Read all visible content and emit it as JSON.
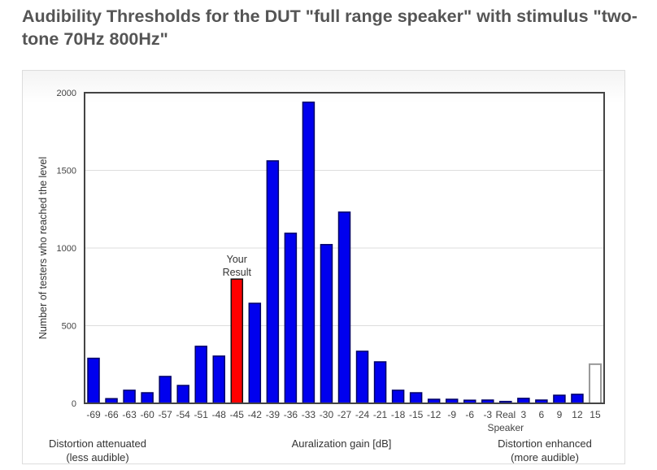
{
  "title": "Audibility Thresholds for the DUT \"full range speaker\" with stimulus \"two-tone 70Hz 800Hz\"",
  "chart_data": {
    "type": "bar",
    "title": "Audibility Thresholds for the DUT \"full range speaker\" with stimulus \"two-tone 70Hz 800Hz\"",
    "xlabel": "Auralization gain [dB]",
    "ylabel": "Number of testers who reached the level",
    "ylim": [
      0,
      2000
    ],
    "yticks": [
      0,
      500,
      1000,
      1500,
      2000
    ],
    "grid": true,
    "categories": [
      "-69",
      "-66",
      "-63",
      "-60",
      "-57",
      "-54",
      "-51",
      "-48",
      "-45",
      "-42",
      "-39",
      "-36",
      "-33",
      "-30",
      "-27",
      "-24",
      "-21",
      "-18",
      "-15",
      "-12",
      "-9",
      "-6",
      "-3",
      "Real Speaker",
      "3",
      "6",
      "9",
      "12",
      "15"
    ],
    "values": [
      290,
      30,
      84,
      68,
      173,
      115,
      367,
      304,
      800,
      644,
      1561,
      1095,
      1939,
      1022,
      1231,
      335,
      267,
      84,
      68,
      26,
      26,
      20,
      21,
      12,
      32,
      21,
      52,
      58,
      252
    ],
    "highlight": {
      "category": "-45",
      "label": "Your Result",
      "color": "#ff0000"
    },
    "hollow_category": "15",
    "bar_color": "#0000ee",
    "left_annotation": "Distortion attenuated\n(less audible)",
    "right_annotation": "Distortion enhanced\n(more audible)"
  }
}
